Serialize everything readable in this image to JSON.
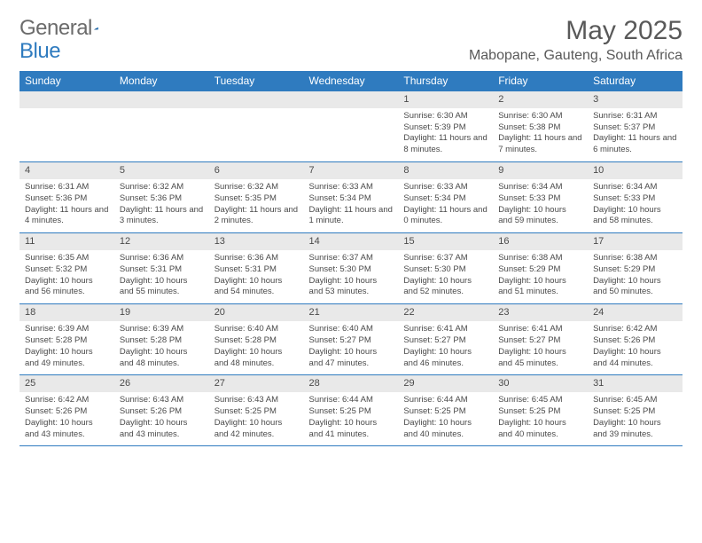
{
  "brand": {
    "name_a": "General",
    "name_b": "Blue"
  },
  "title": "May 2025",
  "location": "Mabopane, Gauteng, South Africa",
  "colors": {
    "accent": "#2f7bbf",
    "header_text": "#ffffff",
    "row_alt": "#e9e9e9",
    "text": "#4a4a4a",
    "title_text": "#595959"
  },
  "daynames": [
    "Sunday",
    "Monday",
    "Tuesday",
    "Wednesday",
    "Thursday",
    "Friday",
    "Saturday"
  ],
  "weeks": [
    [
      null,
      null,
      null,
      null,
      {
        "n": "1",
        "sr": "Sunrise: 6:30 AM",
        "ss": "Sunset: 5:39 PM",
        "dl": "Daylight: 11 hours and 8 minutes."
      },
      {
        "n": "2",
        "sr": "Sunrise: 6:30 AM",
        "ss": "Sunset: 5:38 PM",
        "dl": "Daylight: 11 hours and 7 minutes."
      },
      {
        "n": "3",
        "sr": "Sunrise: 6:31 AM",
        "ss": "Sunset: 5:37 PM",
        "dl": "Daylight: 11 hours and 6 minutes."
      }
    ],
    [
      {
        "n": "4",
        "sr": "Sunrise: 6:31 AM",
        "ss": "Sunset: 5:36 PM",
        "dl": "Daylight: 11 hours and 4 minutes."
      },
      {
        "n": "5",
        "sr": "Sunrise: 6:32 AM",
        "ss": "Sunset: 5:36 PM",
        "dl": "Daylight: 11 hours and 3 minutes."
      },
      {
        "n": "6",
        "sr": "Sunrise: 6:32 AM",
        "ss": "Sunset: 5:35 PM",
        "dl": "Daylight: 11 hours and 2 minutes."
      },
      {
        "n": "7",
        "sr": "Sunrise: 6:33 AM",
        "ss": "Sunset: 5:34 PM",
        "dl": "Daylight: 11 hours and 1 minute."
      },
      {
        "n": "8",
        "sr": "Sunrise: 6:33 AM",
        "ss": "Sunset: 5:34 PM",
        "dl": "Daylight: 11 hours and 0 minutes."
      },
      {
        "n": "9",
        "sr": "Sunrise: 6:34 AM",
        "ss": "Sunset: 5:33 PM",
        "dl": "Daylight: 10 hours and 59 minutes."
      },
      {
        "n": "10",
        "sr": "Sunrise: 6:34 AM",
        "ss": "Sunset: 5:33 PM",
        "dl": "Daylight: 10 hours and 58 minutes."
      }
    ],
    [
      {
        "n": "11",
        "sr": "Sunrise: 6:35 AM",
        "ss": "Sunset: 5:32 PM",
        "dl": "Daylight: 10 hours and 56 minutes."
      },
      {
        "n": "12",
        "sr": "Sunrise: 6:36 AM",
        "ss": "Sunset: 5:31 PM",
        "dl": "Daylight: 10 hours and 55 minutes."
      },
      {
        "n": "13",
        "sr": "Sunrise: 6:36 AM",
        "ss": "Sunset: 5:31 PM",
        "dl": "Daylight: 10 hours and 54 minutes."
      },
      {
        "n": "14",
        "sr": "Sunrise: 6:37 AM",
        "ss": "Sunset: 5:30 PM",
        "dl": "Daylight: 10 hours and 53 minutes."
      },
      {
        "n": "15",
        "sr": "Sunrise: 6:37 AM",
        "ss": "Sunset: 5:30 PM",
        "dl": "Daylight: 10 hours and 52 minutes."
      },
      {
        "n": "16",
        "sr": "Sunrise: 6:38 AM",
        "ss": "Sunset: 5:29 PM",
        "dl": "Daylight: 10 hours and 51 minutes."
      },
      {
        "n": "17",
        "sr": "Sunrise: 6:38 AM",
        "ss": "Sunset: 5:29 PM",
        "dl": "Daylight: 10 hours and 50 minutes."
      }
    ],
    [
      {
        "n": "18",
        "sr": "Sunrise: 6:39 AM",
        "ss": "Sunset: 5:28 PM",
        "dl": "Daylight: 10 hours and 49 minutes."
      },
      {
        "n": "19",
        "sr": "Sunrise: 6:39 AM",
        "ss": "Sunset: 5:28 PM",
        "dl": "Daylight: 10 hours and 48 minutes."
      },
      {
        "n": "20",
        "sr": "Sunrise: 6:40 AM",
        "ss": "Sunset: 5:28 PM",
        "dl": "Daylight: 10 hours and 48 minutes."
      },
      {
        "n": "21",
        "sr": "Sunrise: 6:40 AM",
        "ss": "Sunset: 5:27 PM",
        "dl": "Daylight: 10 hours and 47 minutes."
      },
      {
        "n": "22",
        "sr": "Sunrise: 6:41 AM",
        "ss": "Sunset: 5:27 PM",
        "dl": "Daylight: 10 hours and 46 minutes."
      },
      {
        "n": "23",
        "sr": "Sunrise: 6:41 AM",
        "ss": "Sunset: 5:27 PM",
        "dl": "Daylight: 10 hours and 45 minutes."
      },
      {
        "n": "24",
        "sr": "Sunrise: 6:42 AM",
        "ss": "Sunset: 5:26 PM",
        "dl": "Daylight: 10 hours and 44 minutes."
      }
    ],
    [
      {
        "n": "25",
        "sr": "Sunrise: 6:42 AM",
        "ss": "Sunset: 5:26 PM",
        "dl": "Daylight: 10 hours and 43 minutes."
      },
      {
        "n": "26",
        "sr": "Sunrise: 6:43 AM",
        "ss": "Sunset: 5:26 PM",
        "dl": "Daylight: 10 hours and 43 minutes."
      },
      {
        "n": "27",
        "sr": "Sunrise: 6:43 AM",
        "ss": "Sunset: 5:25 PM",
        "dl": "Daylight: 10 hours and 42 minutes."
      },
      {
        "n": "28",
        "sr": "Sunrise: 6:44 AM",
        "ss": "Sunset: 5:25 PM",
        "dl": "Daylight: 10 hours and 41 minutes."
      },
      {
        "n": "29",
        "sr": "Sunrise: 6:44 AM",
        "ss": "Sunset: 5:25 PM",
        "dl": "Daylight: 10 hours and 40 minutes."
      },
      {
        "n": "30",
        "sr": "Sunrise: 6:45 AM",
        "ss": "Sunset: 5:25 PM",
        "dl": "Daylight: 10 hours and 40 minutes."
      },
      {
        "n": "31",
        "sr": "Sunrise: 6:45 AM",
        "ss": "Sunset: 5:25 PM",
        "dl": "Daylight: 10 hours and 39 minutes."
      }
    ]
  ]
}
